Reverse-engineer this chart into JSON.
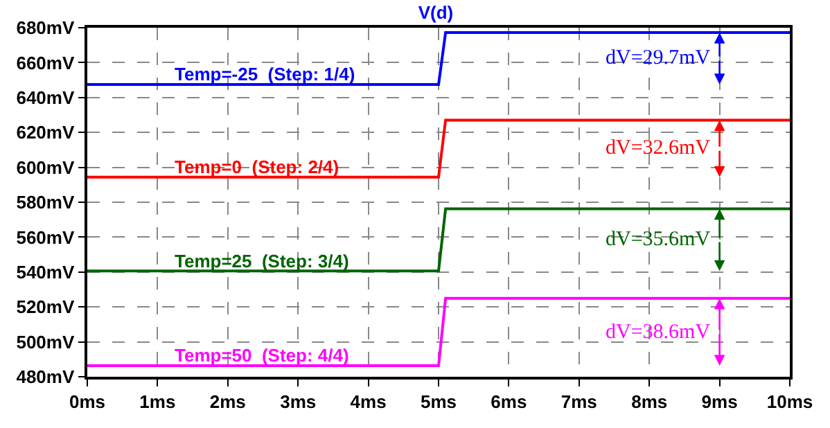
{
  "chart_data": {
    "type": "line",
    "title": "V(d)",
    "x": [
      0,
      5,
      5.1,
      10
    ],
    "series": [
      {
        "name": "Temp=-25  (Step: 1/4)",
        "color": "#0000ff",
        "values": [
          647.5,
          647.5,
          677.2,
          677.2
        ]
      },
      {
        "name": "Temp=0  (Step: 2/4)",
        "color": "#ff0000",
        "values": [
          594.4,
          594.4,
          627.0,
          627.0
        ]
      },
      {
        "name": "Temp=25  (Step: 3/4)",
        "color": "#006400",
        "values": [
          540.6,
          540.6,
          576.2,
          576.2
        ]
      },
      {
        "name": "Temp=50  (Step: 4/4)",
        "color": "#ff00ff",
        "values": [
          486.3,
          486.3,
          524.9,
          524.9
        ]
      }
    ],
    "annotations": [
      "dV=29.7mV",
      "dV=32.6mV",
      "dV=35.6mV",
      "dV=38.6mV"
    ],
    "xlim": [
      0,
      10
    ],
    "xticks": [
      {
        "value": 0,
        "label": "0ms"
      },
      {
        "value": 1,
        "label": "1ms"
      },
      {
        "value": 2,
        "label": "2ms"
      },
      {
        "value": 3,
        "label": "3ms"
      },
      {
        "value": 4,
        "label": "4ms"
      },
      {
        "value": 5,
        "label": "5ms"
      },
      {
        "value": 6,
        "label": "6ms"
      },
      {
        "value": 7,
        "label": "7ms"
      },
      {
        "value": 8,
        "label": "8ms"
      },
      {
        "value": 9,
        "label": "9ms"
      },
      {
        "value": 10,
        "label": "10ms"
      }
    ],
    "ylim": [
      480,
      680
    ],
    "yticks": [
      {
        "value": 480,
        "label": "480mV"
      },
      {
        "value": 500,
        "label": "500mV"
      },
      {
        "value": 520,
        "label": "520mV"
      },
      {
        "value": 540,
        "label": "540mV"
      },
      {
        "value": 560,
        "label": "560mV"
      },
      {
        "value": 580,
        "label": "580mV"
      },
      {
        "value": 600,
        "label": "600mV"
      },
      {
        "value": 620,
        "label": "620mV"
      },
      {
        "value": 640,
        "label": "640mV"
      },
      {
        "value": 660,
        "label": "660mV"
      },
      {
        "value": 680,
        "label": "680mV"
      }
    ],
    "grid": true,
    "legend": false,
    "marker": "none",
    "line_style": "solid"
  }
}
